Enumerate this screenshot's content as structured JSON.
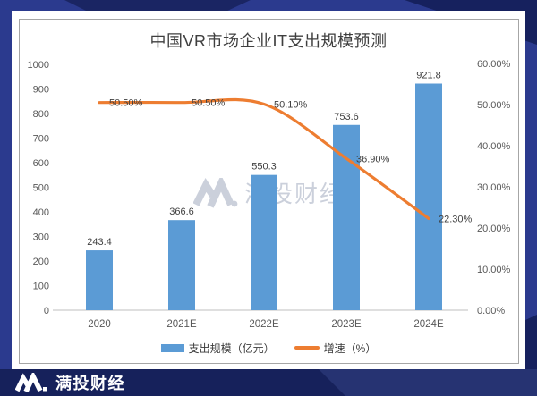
{
  "brand": {
    "name": "满投财经"
  },
  "watermark": {
    "text": "满投财经"
  },
  "chart_data": {
    "type": "bar",
    "combo": "bar+line",
    "title": "中国VR市场企业IT支出规模预测",
    "categories": [
      "2020",
      "2021E",
      "2022E",
      "2023E",
      "2024E"
    ],
    "series": [
      {
        "name": "支出规模（亿元）",
        "type": "bar",
        "axis": "left",
        "color": "#5b9bd5",
        "values": [
          243.4,
          366.6,
          550.3,
          753.6,
          921.8
        ],
        "labels": [
          "243.4",
          "366.6",
          "550.3",
          "753.6",
          "921.8"
        ]
      },
      {
        "name": "增速（%）",
        "type": "line",
        "axis": "right",
        "color": "#ed7d31",
        "values": [
          50.5,
          50.5,
          50.1,
          36.9,
          22.3
        ],
        "labels": [
          "50.50%",
          "50.50%",
          "50.10%",
          "36.90%",
          "22.30%"
        ]
      }
    ],
    "left_axis": {
      "min": 0,
      "max": 1000,
      "step": 100,
      "ticks": [
        "0",
        "100",
        "200",
        "300",
        "400",
        "500",
        "600",
        "700",
        "800",
        "900",
        "1000"
      ]
    },
    "right_axis": {
      "min": 0,
      "max": 60,
      "step": 10,
      "ticks": [
        "0.00%",
        "10.00%",
        "20.00%",
        "30.00%",
        "40.00%",
        "50.00%",
        "60.00%"
      ]
    },
    "legend_position": "bottom",
    "grid": false
  }
}
